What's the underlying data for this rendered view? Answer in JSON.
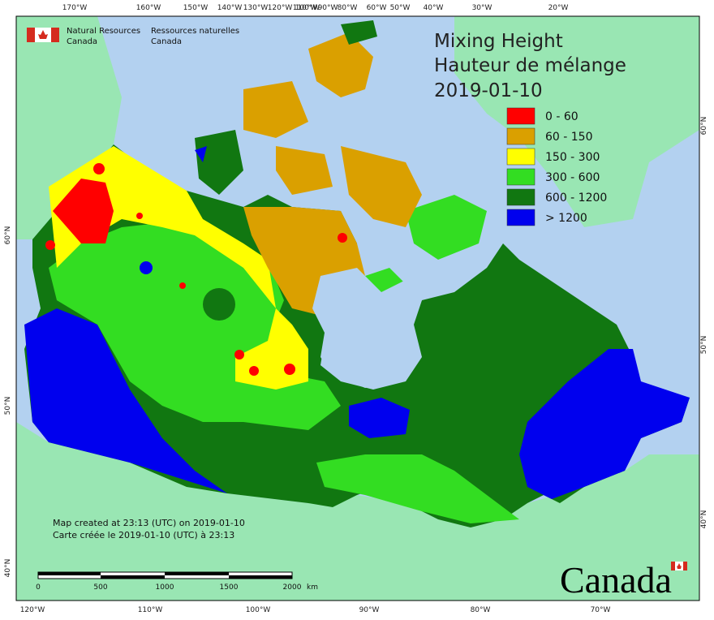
{
  "header": {
    "org_en": [
      "Natural Resources",
      "Canada"
    ],
    "org_fr": [
      "Ressources naturelles",
      "Canada"
    ]
  },
  "title": [
    "Mixing Height",
    "Hauteur de mélange",
    "2019-01-10"
  ],
  "legend": [
    {
      "label": "0 - 60",
      "color": "#ff0000"
    },
    {
      "label": "60 - 150",
      "color": "#daa000"
    },
    {
      "label": "150 - 300",
      "color": "#ffff00"
    },
    {
      "label": "300 - 600",
      "color": "#33dd22"
    },
    {
      "label": "600 - 1200",
      "color": "#117711"
    },
    {
      "label": "> 1200",
      "color": "#0000ee"
    }
  ],
  "graticule": {
    "top": [
      "170°W",
      "160°W",
      "150°W",
      "140°W",
      "130°W",
      "120°W",
      "110°W",
      "100°W",
      "90°W",
      "80°W",
      "60°W",
      "50°W",
      "40°W",
      "30°W",
      "20°W"
    ],
    "bottom": [
      "120°W",
      "110°W",
      "100°W",
      "90°W",
      "80°W",
      "70°W"
    ],
    "left": [
      "60°N",
      "50°N",
      "40°N"
    ],
    "right": [
      "60°N",
      "50°N",
      "40°N"
    ]
  },
  "notes": [
    "Map created at 23:13 (UTC) on 2019-01-10",
    "Carte créée le 2019-01-10 (UTC) à 23:13"
  ],
  "scale_bar": {
    "labels": [
      "0",
      "500",
      "1000",
      "1500",
      "2000"
    ],
    "unit": "km"
  },
  "wordmark": "Canada"
}
